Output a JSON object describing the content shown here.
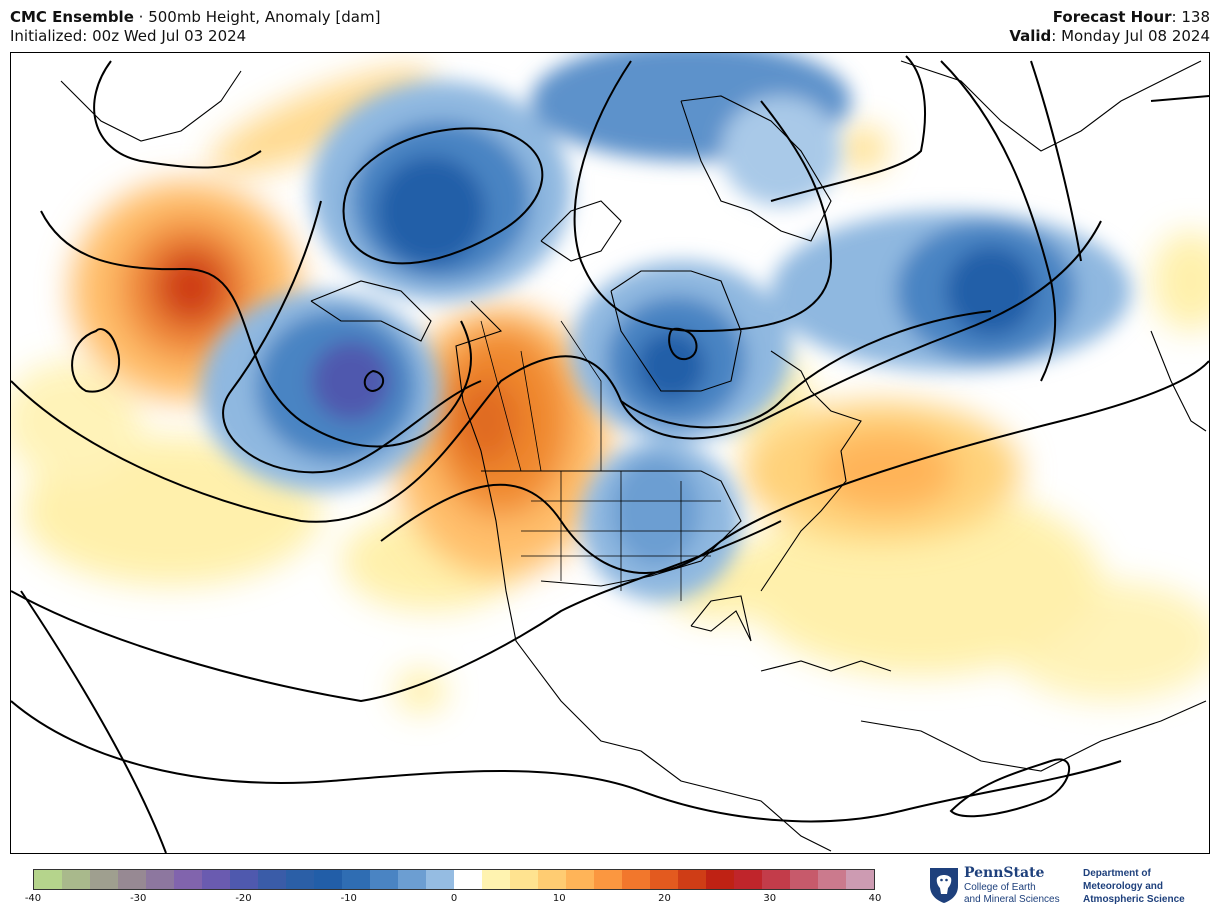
{
  "header": {
    "model": "CMC Ensemble",
    "separator": " · ",
    "product": "500mb Height, Anomaly [dam]",
    "init": "Initialized: 00z Wed Jul 03 2024",
    "forecast_label": "Forecast Hour",
    "forecast_value": ": 138",
    "valid_label": "Valid",
    "valid_value": ": Monday Jul 08 2024"
  },
  "colorbar": {
    "ticks": [
      "-40",
      "-30",
      "-20",
      "-10",
      "0",
      "10",
      "20",
      "30",
      "40"
    ],
    "range": [
      -40,
      40
    ],
    "colors": [
      "#b5d48c",
      "#a9b98c",
      "#9f9f8f",
      "#978993",
      "#8d779f",
      "#8164ad",
      "#6a5bb0",
      "#4f59ae",
      "#3a5ca8",
      "#2b5fa7",
      "#225ea8",
      "#2f6db3",
      "#4a84c3",
      "#6c9ed2",
      "#95bce2",
      "#ffffff",
      "#fff3b0",
      "#ffe390",
      "#ffcc72",
      "#ffb458",
      "#fb9740",
      "#f2772c",
      "#e35a1f",
      "#cf3d16",
      "#bf2214",
      "#c0252b",
      "#c33c4a",
      "#c75a6b",
      "#cb7a8d",
      "#cd9bb2"
    ]
  },
  "logo": {
    "name": "PennState",
    "college1": "College of Earth",
    "college2": "and Mineral Sciences",
    "dept1": "Department of",
    "dept2": "Meteorology and",
    "dept3": "Atmospheric Science"
  }
}
